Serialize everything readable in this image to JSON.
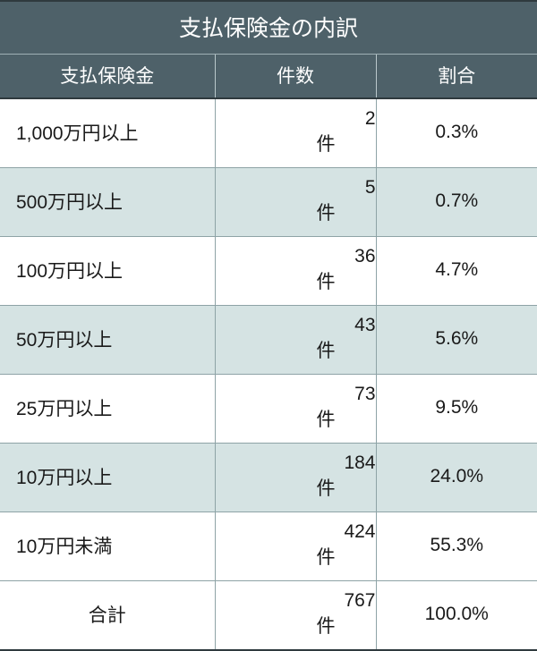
{
  "table": {
    "title": "支払保険金の内訳",
    "columns": [
      "支払保険金",
      "件数",
      "割合"
    ],
    "count_unit": "件",
    "rows": [
      {
        "category": "1,000万円以上",
        "count": "2",
        "ratio": "0.3%"
      },
      {
        "category": "500万円以上",
        "count": "5",
        "ratio": "0.7%"
      },
      {
        "category": "100万円以上",
        "count": "36",
        "ratio": "4.7%"
      },
      {
        "category": "50万円以上",
        "count": "43",
        "ratio": "5.6%"
      },
      {
        "category": "25万円以上",
        "count": "73",
        "ratio": "9.5%"
      },
      {
        "category": "10万円以上",
        "count": "184",
        "ratio": "24.0%"
      },
      {
        "category": "10万円未満",
        "count": "424",
        "ratio": "55.3%"
      }
    ],
    "total": {
      "category": "合計",
      "count": "767",
      "ratio": "100.0%"
    }
  },
  "style": {
    "header_bg": "#4e6169",
    "header_fg": "#ffffff",
    "row_odd_bg": "#ffffff",
    "row_even_bg": "#d5e3e3",
    "body_fg": "#1a1a1a",
    "border_dark": "#2f3a3e",
    "border_light": "#9fb0b5",
    "divider_light": "#bac8cc",
    "row_border": "#8ea3a6",
    "col_widths": [
      "40%",
      "30%",
      "30%"
    ]
  }
}
